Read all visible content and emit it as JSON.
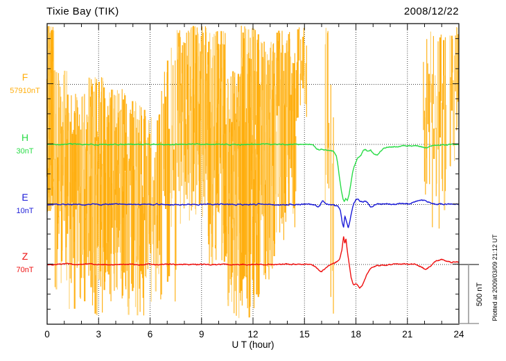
{
  "chart_data": {
    "type": "line",
    "title": "Tixie Bay (TIK)",
    "date": "2008/12/22",
    "xlabel": "U T (hour)",
    "x_range": [
      0,
      24
    ],
    "x_ticks": [
      0,
      3,
      6,
      9,
      12,
      15,
      18,
      21,
      24
    ],
    "x_minor_step_hours": 1,
    "grid": "dotted vertical lines every 3 h; dotted horizontal baseline for each trace",
    "scale_bar": {
      "label": "500 nT",
      "nT": 500
    },
    "footer": "Plotted at 2009/03/09 21:12 UT",
    "series": [
      {
        "name": "F",
        "offset_label": "57910nT",
        "color": "#FFAE0D",
        "color_light": "#FFD373",
        "style": "noise",
        "noise_segments": [
          [
            0.0,
            0.4,
            500,
            -1080,
            55
          ],
          [
            0.4,
            1.15,
            120,
            -1760,
            28
          ],
          [
            1.15,
            2.25,
            -80,
            -1900,
            32
          ],
          [
            2.25,
            3.35,
            60,
            -1960,
            48
          ],
          [
            3.35,
            4.55,
            -40,
            -1870,
            48
          ],
          [
            4.55,
            5.7,
            -140,
            -1960,
            36
          ],
          [
            5.7,
            6.6,
            -220,
            -1990,
            20
          ],
          [
            6.6,
            7.55,
            320,
            -1860,
            16
          ],
          [
            7.55,
            8.3,
            460,
            -1250,
            24
          ],
          [
            8.3,
            9.4,
            495,
            -1120,
            55
          ],
          [
            9.4,
            10.45,
            450,
            -1550,
            50
          ],
          [
            10.45,
            11.3,
            120,
            -1980,
            48
          ],
          [
            11.3,
            12.4,
            495,
            -2000,
            60
          ],
          [
            12.4,
            13.3,
            360,
            -1650,
            40
          ],
          [
            13.3,
            14.5,
            460,
            -1350,
            36
          ],
          [
            14.5,
            15.15,
            480,
            -350,
            12
          ],
          [
            16.2,
            16.45,
            490,
            -1300,
            5
          ],
          [
            16.5,
            16.7,
            490,
            -1980,
            3
          ],
          [
            21.9,
            23.3,
            460,
            -1250,
            26
          ],
          [
            23.45,
            23.75,
            450,
            -750,
            6
          ],
          [
            23.8,
            24.0,
            490,
            -450,
            5
          ]
        ]
      },
      {
        "name": "H",
        "offset_label": "30nT",
        "color": "#28DC46",
        "style": "line",
        "keypoints": [
          [
            0,
            0
          ],
          [
            4,
            0
          ],
          [
            8,
            0
          ],
          [
            12,
            0
          ],
          [
            14,
            0
          ],
          [
            15.3,
            0
          ],
          [
            15.55,
            -10
          ],
          [
            15.7,
            -38
          ],
          [
            15.85,
            -45
          ],
          [
            16.0,
            -38
          ],
          [
            16.2,
            -48
          ],
          [
            16.45,
            -52
          ],
          [
            16.7,
            -60
          ],
          [
            16.85,
            -95
          ],
          [
            16.95,
            -180
          ],
          [
            17.05,
            -290
          ],
          [
            17.15,
            -395
          ],
          [
            17.25,
            -465
          ],
          [
            17.32,
            -485
          ],
          [
            17.4,
            -455
          ],
          [
            17.5,
            -478
          ],
          [
            17.6,
            -420
          ],
          [
            17.7,
            -330
          ],
          [
            17.8,
            -245
          ],
          [
            17.9,
            -185
          ],
          [
            18.0,
            -150
          ],
          [
            18.08,
            -120
          ],
          [
            18.15,
            -110
          ],
          [
            18.3,
            -95
          ],
          [
            18.42,
            -50
          ],
          [
            18.55,
            -42
          ],
          [
            18.7,
            -55
          ],
          [
            18.85,
            -45
          ],
          [
            19.05,
            -80
          ],
          [
            19.25,
            -85
          ],
          [
            19.45,
            -55
          ],
          [
            19.65,
            -30
          ],
          [
            19.9,
            -25
          ],
          [
            20.3,
            -18
          ],
          [
            20.8,
            -12
          ],
          [
            21.3,
            -8
          ],
          [
            21.75,
            -15
          ],
          [
            22.0,
            -28
          ],
          [
            22.2,
            -25
          ],
          [
            22.45,
            -8
          ],
          [
            22.9,
            -5
          ],
          [
            23.4,
            -2
          ],
          [
            24,
            0
          ]
        ]
      },
      {
        "name": "E",
        "offset_label": "10nT",
        "color": "#1A1AD8",
        "style": "line",
        "keypoints": [
          [
            0,
            0
          ],
          [
            4,
            0
          ],
          [
            8,
            0
          ],
          [
            12,
            0
          ],
          [
            15.4,
            0
          ],
          [
            15.6,
            -8
          ],
          [
            15.75,
            -25
          ],
          [
            15.9,
            -8
          ],
          [
            16.05,
            30
          ],
          [
            16.2,
            10
          ],
          [
            16.4,
            2
          ],
          [
            16.7,
            -2
          ],
          [
            16.95,
            -15
          ],
          [
            17.1,
            -55
          ],
          [
            17.2,
            -150
          ],
          [
            17.28,
            -190
          ],
          [
            17.35,
            -95
          ],
          [
            17.45,
            -140
          ],
          [
            17.55,
            -195
          ],
          [
            17.65,
            -135
          ],
          [
            17.75,
            -60
          ],
          [
            17.88,
            10
          ],
          [
            18.0,
            40
          ],
          [
            18.12,
            45
          ],
          [
            18.25,
            28
          ],
          [
            18.4,
            22
          ],
          [
            18.55,
            30
          ],
          [
            18.7,
            12
          ],
          [
            18.85,
            -22
          ],
          [
            19.0,
            -10
          ],
          [
            19.2,
            2
          ],
          [
            19.6,
            5
          ],
          [
            20.1,
            2
          ],
          [
            20.6,
            5
          ],
          [
            21.1,
            8
          ],
          [
            21.5,
            25
          ],
          [
            21.8,
            35
          ],
          [
            22.1,
            28
          ],
          [
            22.4,
            8
          ],
          [
            22.9,
            2
          ],
          [
            23.4,
            6
          ],
          [
            23.7,
            2
          ],
          [
            24,
            3
          ]
        ]
      },
      {
        "name": "Z",
        "offset_label": "70nT",
        "color": "#EE0F0F",
        "style": "line",
        "keypoints": [
          [
            0,
            0
          ],
          [
            4,
            0
          ],
          [
            8,
            0
          ],
          [
            12,
            0
          ],
          [
            14,
            2
          ],
          [
            15.4,
            0
          ],
          [
            15.6,
            -12
          ],
          [
            15.8,
            -45
          ],
          [
            16.0,
            -58
          ],
          [
            16.2,
            -35
          ],
          [
            16.4,
            -8
          ],
          [
            16.6,
            5
          ],
          [
            16.85,
            18
          ],
          [
            17.05,
            45
          ],
          [
            17.18,
            120
          ],
          [
            17.28,
            235
          ],
          [
            17.35,
            175
          ],
          [
            17.42,
            215
          ],
          [
            17.52,
            90
          ],
          [
            17.62,
            -10
          ],
          [
            17.72,
            -110
          ],
          [
            17.85,
            -165
          ],
          [
            17.95,
            -160
          ],
          [
            18.1,
            -175
          ],
          [
            18.22,
            -205
          ],
          [
            18.35,
            -185
          ],
          [
            18.5,
            -130
          ],
          [
            18.65,
            -80
          ],
          [
            18.8,
            -40
          ],
          [
            19.0,
            -18
          ],
          [
            19.3,
            -8
          ],
          [
            19.7,
            -4
          ],
          [
            20.2,
            0
          ],
          [
            20.8,
            4
          ],
          [
            21.4,
            2
          ],
          [
            21.8,
            -15
          ],
          [
            22.0,
            -42
          ],
          [
            22.2,
            -30
          ],
          [
            22.45,
            5
          ],
          [
            22.7,
            35
          ],
          [
            23.0,
            42
          ],
          [
            23.3,
            25
          ],
          [
            23.6,
            18
          ],
          [
            23.9,
            28
          ],
          [
            24,
            22
          ]
        ]
      }
    ]
  }
}
